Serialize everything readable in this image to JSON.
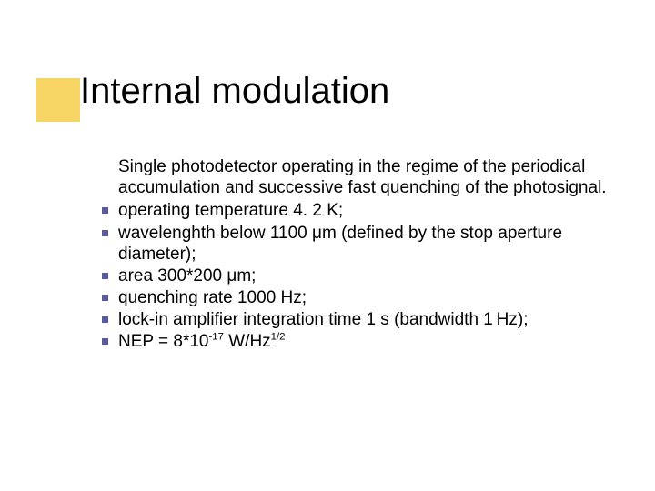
{
  "accent": {
    "color": "#f6d565"
  },
  "title": "Internal modulation",
  "lead": "Single photodetector operating in the regime of the periodical accumulation and successive fast quenching of the photosignal.",
  "items": [
    {
      "pre": "operating temperature ",
      "val": "4. 2",
      "post": " K;"
    },
    {
      "pre": "wavelenghth below ",
      "val": "1100",
      "post": " μm (defined by the stop aperture diameter);"
    },
    {
      "pre": "area 300*200 μm;",
      "val": "",
      "post": ""
    },
    {
      "pre": "quenching rate 1000 Hz;",
      "val": "",
      "post": ""
    },
    {
      "pre": "lock-in amplifier integration time 1 s (bandwidth 1 Hz);",
      "val": "",
      "post": ""
    },
    {
      "pre": "NEP = 8*10",
      "sup": "-17",
      "post2": " W/Hz",
      "sup2": "1/2"
    }
  ],
  "bullet_color": "#5b5b9a"
}
